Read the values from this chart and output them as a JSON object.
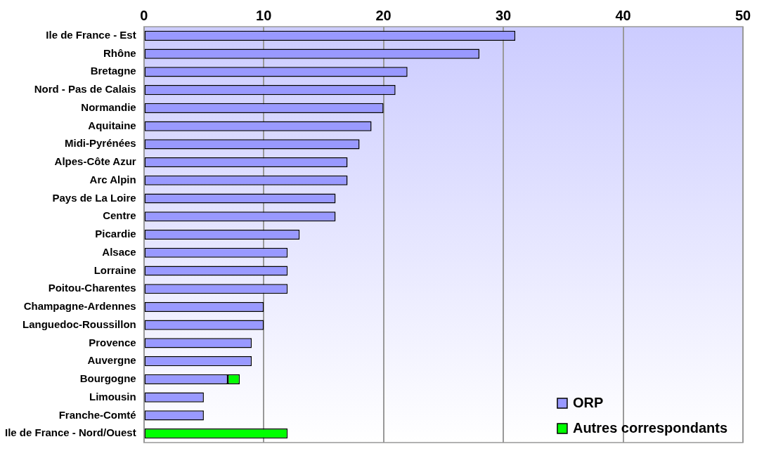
{
  "chart_data": {
    "type": "bar",
    "orientation": "horizontal",
    "stacked": true,
    "categories": [
      "Ile de France - Est",
      "Rhône",
      "Bretagne",
      "Nord - Pas de Calais",
      "Normandie",
      "Aquitaine",
      "Midi-Pyrénées",
      "Alpes-Côte Azur",
      "Arc Alpin",
      "Pays de La Loire",
      "Centre",
      "Picardie",
      "Alsace",
      "Lorraine",
      "Poitou-Charentes",
      "Champagne-Ardennes",
      "Languedoc-Roussillon",
      "Provence",
      "Auvergne",
      "Bourgogne",
      "Limousin",
      "Franche-Comté",
      "Ile de France - Nord/Ouest"
    ],
    "series": [
      {
        "name": "ORP",
        "color": "#9999ff",
        "values": [
          31,
          28,
          22,
          21,
          20,
          19,
          18,
          17,
          17,
          16,
          16,
          13,
          12,
          12,
          12,
          10,
          10,
          9,
          9,
          7,
          5,
          5,
          null
        ]
      },
      {
        "name": "Autres correspondants",
        "color": "#00ff00",
        "values": [
          null,
          null,
          null,
          null,
          null,
          null,
          null,
          null,
          null,
          null,
          null,
          null,
          null,
          null,
          null,
          null,
          null,
          null,
          null,
          1,
          null,
          null,
          12
        ]
      }
    ],
    "xlim": [
      0,
      50
    ],
    "xticks": [
      0,
      10,
      20,
      30,
      40,
      50
    ],
    "grid": "x",
    "legend": "bottom right"
  }
}
